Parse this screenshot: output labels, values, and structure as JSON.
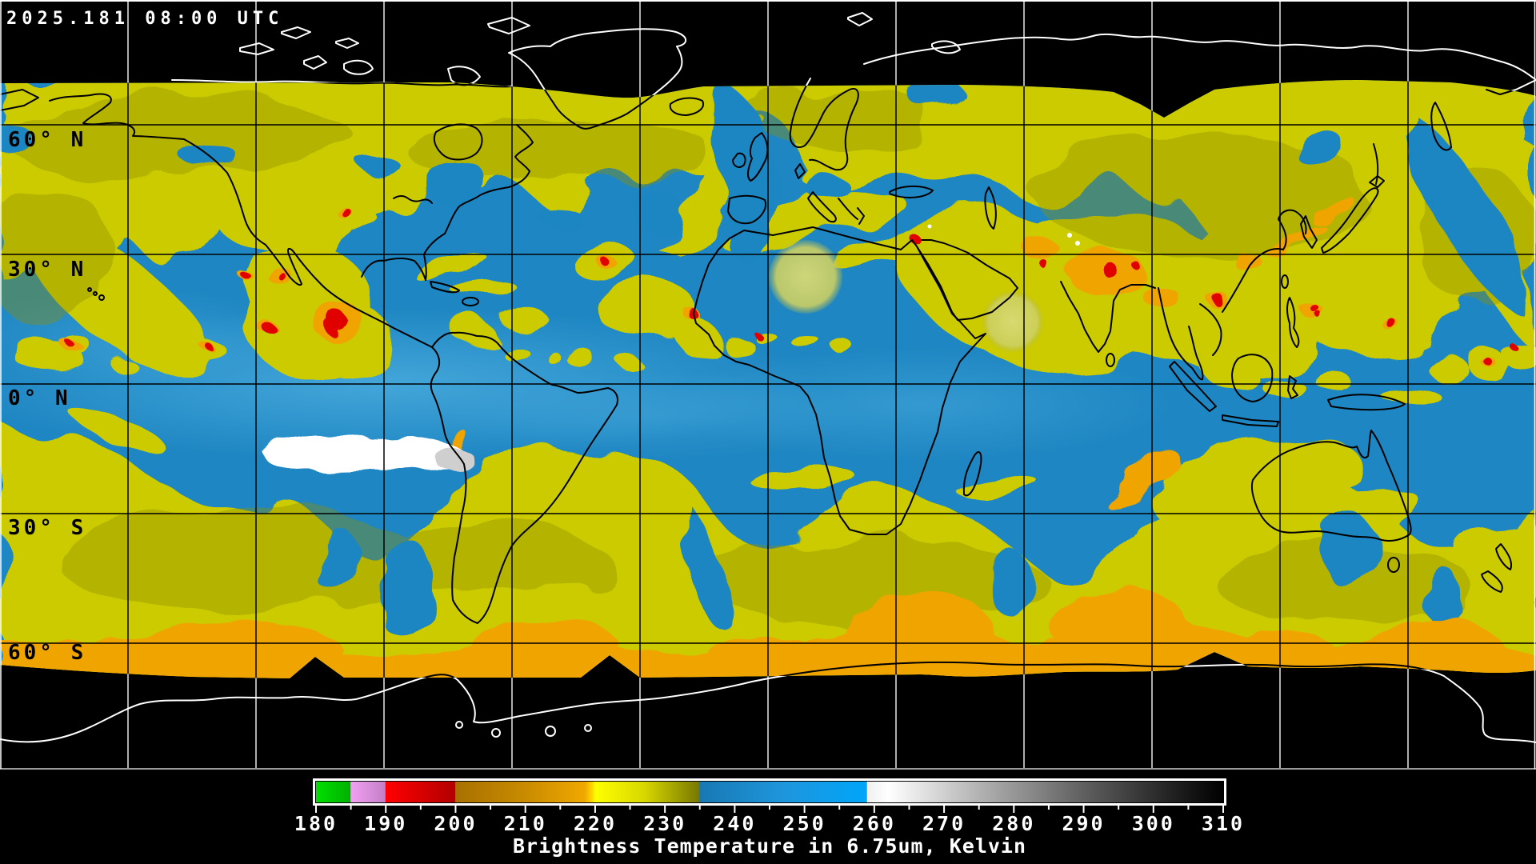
{
  "header": {
    "timestamp": "2025.181 08:00 UTC"
  },
  "map": {
    "latitude_labels": [
      "60° N",
      "30° N",
      "0° N",
      "30° S",
      "60° S"
    ]
  },
  "colorbar": {
    "min": 180,
    "max": 310,
    "tick_step": 5,
    "label_step": 10,
    "tick_labels": [
      "180",
      "190",
      "200",
      "210",
      "220",
      "230",
      "240",
      "250",
      "260",
      "270",
      "280",
      "290",
      "300",
      "310"
    ],
    "caption": "Brightness Temperature in 6.75um, Kelvin",
    "gradient": [
      {
        "t": 180,
        "color": "#00e000"
      },
      {
        "t": 184.9,
        "color": "#00b000"
      },
      {
        "t": 185,
        "color": "#f2a0f2"
      },
      {
        "t": 189.9,
        "color": "#c47fc8"
      },
      {
        "t": 190,
        "color": "#ff0000"
      },
      {
        "t": 199.9,
        "color": "#b20000"
      },
      {
        "t": 200,
        "color": "#a87000"
      },
      {
        "t": 210,
        "color": "#c98b00"
      },
      {
        "t": 218.5,
        "color": "#f0a800"
      },
      {
        "t": 219.6,
        "color": "#ffd800"
      },
      {
        "t": 220,
        "color": "#ffff00"
      },
      {
        "t": 227,
        "color": "#d8d800"
      },
      {
        "t": 234.9,
        "color": "#787800"
      },
      {
        "t": 235,
        "color": "#1878b4"
      },
      {
        "t": 247,
        "color": "#1e96dc"
      },
      {
        "t": 258.9,
        "color": "#00a5fa"
      },
      {
        "t": 259,
        "color": "#f0f0f0"
      },
      {
        "t": 262,
        "color": "#ffffff"
      },
      {
        "t": 275,
        "color": "#b2b2b2"
      },
      {
        "t": 290,
        "color": "#5f5f5f"
      },
      {
        "t": 305,
        "color": "#161616"
      },
      {
        "t": 310,
        "color": "#000000"
      }
    ]
  },
  "palette": {
    "background": "#000000",
    "ocean_blue": "#1e86c2",
    "equator_blue": "#4fb2e2",
    "cloud_yellow": "#cbcb00",
    "cloud_olive": "#8e8e00",
    "cloud_orange": "#f0a400",
    "cold_red": "#e00000",
    "cold_white": "#ffffff",
    "grid_on_data": "#000000",
    "grid_on_space": "#ffffff",
    "coast_on_data": "#000000",
    "coast_on_space": "#ffffff"
  }
}
